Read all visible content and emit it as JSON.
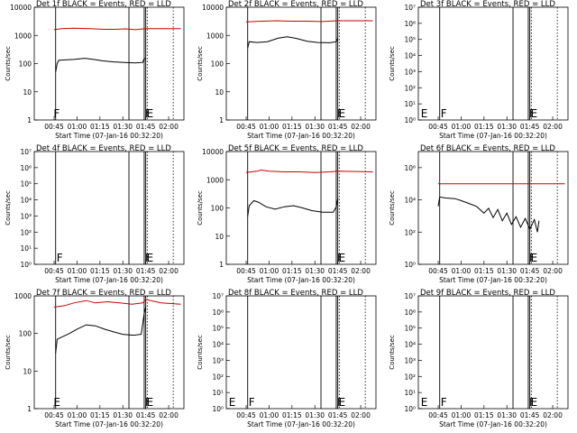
{
  "figure": {
    "xlabel": "Start Time (07-Jan-16 00:32:20)",
    "ylabel": "Counts/sec"
  },
  "chart_data": [
    {
      "type": "line",
      "title": "Det 1f BLACK = Events, RED = LLD",
      "scale": "log",
      "ylim": [
        1,
        10000
      ],
      "y_ticks": [
        "1",
        "10",
        "100",
        "1000",
        "10000"
      ],
      "x_ticks": [
        "00:45",
        "01:00",
        "01:15",
        "01:30",
        "01:45",
        "02:00"
      ],
      "flag_labels": [
        {
          "text": "F",
          "x": "00:44"
        },
        {
          "text": "F",
          "x": "01:44"
        },
        {
          "text": "E",
          "x": "01:45"
        }
      ],
      "series": [
        {
          "color": "#000000",
          "points": [
            [
              "00:46",
              50
            ],
            [
              "00:47",
              100
            ],
            [
              "00:48",
              130
            ],
            [
              "00:52",
              135
            ],
            [
              "00:58",
              140
            ],
            [
              "01:05",
              155
            ],
            [
              "01:11",
              140
            ],
            [
              "01:17",
              125
            ],
            [
              "01:24",
              115
            ],
            [
              "01:31",
              110
            ],
            [
              "01:38",
              105
            ],
            [
              "01:43",
              110
            ],
            [
              "01:44",
              150
            ],
            [
              "01:45",
              150
            ]
          ]
        },
        {
          "color": "#cc0000",
          "points": [
            [
              "00:45",
              1600
            ],
            [
              "00:50",
              1750
            ],
            [
              "00:58",
              1800
            ],
            [
              "01:08",
              1750
            ],
            [
              "01:18",
              1650
            ],
            [
              "01:25",
              1650
            ],
            [
              "01:32",
              1700
            ],
            [
              "01:38",
              1600
            ],
            [
              "01:45",
              1750
            ],
            [
              "02:08",
              1750
            ]
          ]
        }
      ]
    },
    {
      "type": "line",
      "title": "Det 2f BLACK = Events, RED = LLD",
      "scale": "log",
      "ylim": [
        1,
        10000
      ],
      "y_ticks": [
        "1",
        "10",
        "100",
        "1000",
        "10000"
      ],
      "x_ticks": [
        "00:45",
        "01:00",
        "01:15",
        "01:30",
        "01:45",
        "02:00"
      ],
      "flag_labels": [
        {
          "text": "F",
          "x": "01:44"
        },
        {
          "text": "E",
          "x": "01:45"
        }
      ],
      "series": [
        {
          "color": "#000000",
          "points": [
            [
              "00:46",
              350
            ],
            [
              "00:47",
              600
            ],
            [
              "00:52",
              560
            ],
            [
              "00:59",
              600
            ],
            [
              "01:06",
              800
            ],
            [
              "01:12",
              900
            ],
            [
              "01:18",
              780
            ],
            [
              "01:25",
              620
            ],
            [
              "01:32",
              560
            ],
            [
              "01:40",
              550
            ],
            [
              "01:44",
              600
            ],
            [
              "01:45",
              800
            ]
          ]
        },
        {
          "color": "#cc0000",
          "points": [
            [
              "00:45",
              3000
            ],
            [
              "00:55",
              3200
            ],
            [
              "01:05",
              3300
            ],
            [
              "01:15",
              3200
            ],
            [
              "01:25",
              3200
            ],
            [
              "01:35",
              3100
            ],
            [
              "01:45",
              3300
            ],
            [
              "02:08",
              3300
            ]
          ]
        }
      ]
    },
    {
      "type": "line",
      "title": "Det 3f BLACK = Events, RED = LLD",
      "scale": "log_exp",
      "ylim": [
        1,
        10000000
      ],
      "y_ticks": [
        "10⁰",
        "10¹",
        "10²",
        "10³",
        "10⁴",
        "10⁵",
        "10⁶",
        "10⁷"
      ],
      "x_ticks": [
        "00:45",
        "01:00",
        "01:15",
        "01:30",
        "01:45",
        "02:00"
      ],
      "flag_labels": [
        {
          "text": "E",
          "x": "00:33"
        },
        {
          "text": "F",
          "x": "00:46"
        },
        {
          "text": "F",
          "x": "01:44"
        },
        {
          "text": "E",
          "x": "01:45"
        }
      ],
      "series": []
    },
    {
      "type": "line",
      "title": "Det 4f BLACK = Events, RED = LLD",
      "scale": "log_exp",
      "ylim": [
        1,
        10000000
      ],
      "y_ticks": [
        "10⁰",
        "10¹",
        "10²",
        "10³",
        "10⁴",
        "10⁵",
        "10⁶",
        "10⁷"
      ],
      "x_ticks": [
        "00:45",
        "01:00",
        "01:15",
        "01:30",
        "01:45",
        "02:00"
      ],
      "flag_labels": [
        {
          "text": "F",
          "x": "00:46"
        },
        {
          "text": "F",
          "x": "01:44"
        },
        {
          "text": "E",
          "x": "01:45"
        }
      ],
      "series": []
    },
    {
      "type": "line",
      "title": "Det 5f BLACK = Events, RED = LLD",
      "scale": "log",
      "ylim": [
        1,
        10000
      ],
      "y_ticks": [
        "1",
        "10",
        "100",
        "1000",
        "10000"
      ],
      "x_ticks": [
        "00:45",
        "01:00",
        "01:15",
        "01:30",
        "01:45",
        "02:00"
      ],
      "flag_labels": [
        {
          "text": "F",
          "x": "01:44"
        },
        {
          "text": "E",
          "x": "01:45"
        }
      ],
      "series": [
        {
          "color": "#000000",
          "points": [
            [
              "00:46",
              50
            ],
            [
              "00:47",
              120
            ],
            [
              "00:50",
              180
            ],
            [
              "00:53",
              160
            ],
            [
              "00:58",
              110
            ],
            [
              "01:04",
              90
            ],
            [
              "01:10",
              110
            ],
            [
              "01:16",
              120
            ],
            [
              "01:22",
              100
            ],
            [
              "01:28",
              80
            ],
            [
              "01:35",
              70
            ],
            [
              "01:42",
              70
            ],
            [
              "01:44",
              110
            ],
            [
              "01:45",
              220
            ]
          ]
        },
        {
          "color": "#cc0000",
          "points": [
            [
              "00:45",
              1800
            ],
            [
              "00:52",
              2000
            ],
            [
              "00:55",
              2200
            ],
            [
              "01:00",
              2000
            ],
            [
              "01:10",
              1900
            ],
            [
              "01:20",
              1900
            ],
            [
              "01:30",
              1800
            ],
            [
              "01:40",
              1900
            ],
            [
              "01:45",
              2000
            ],
            [
              "02:08",
              1900
            ]
          ]
        }
      ]
    },
    {
      "type": "line",
      "title": "Det 6f BLACK = Events, RED = LLD",
      "scale": "log_exp",
      "ylim": [
        1,
        10000000
      ],
      "y_ticks": [
        "10⁰",
        "10²",
        "10⁴",
        "10⁶"
      ],
      "x_ticks": [
        "00:45",
        "01:00",
        "01:15",
        "01:30",
        "01:45",
        "02:00"
      ],
      "flag_labels": [
        {
          "text": "F",
          "x": "01:44"
        },
        {
          "text": "E",
          "x": "01:45"
        }
      ],
      "series": [
        {
          "color": "#000000",
          "points": [
            [
              "00:45",
              4000
            ],
            [
              "00:46",
              15000
            ],
            [
              "00:50",
              13000
            ],
            [
              "00:56",
              12000
            ],
            [
              "01:00",
              9000
            ],
            [
              "01:05",
              6000
            ],
            [
              "01:10",
              4000
            ],
            [
              "01:15",
              1500
            ],
            [
              "01:18",
              3000
            ],
            [
              "01:21",
              800
            ],
            [
              "01:24",
              2500
            ],
            [
              "01:27",
              500
            ],
            [
              "01:30",
              1500
            ],
            [
              "01:33",
              300
            ],
            [
              "01:36",
              900
            ],
            [
              "01:39",
              200
            ],
            [
              "01:42",
              700
            ],
            [
              "01:45",
              150
            ],
            [
              "01:48",
              600
            ],
            [
              "01:50",
              100
            ],
            [
              "01:51",
              500
            ]
          ]
        },
        {
          "color": "#cc0000",
          "points": [
            [
              "00:45",
              100000
            ],
            [
              "01:00",
              100000
            ],
            [
              "01:15",
              100000
            ],
            [
              "01:30",
              100000
            ],
            [
              "01:45",
              100000
            ],
            [
              "02:08",
              100000
            ]
          ]
        }
      ]
    },
    {
      "type": "line",
      "title": "Det 7f BLACK = Events, RED = LLD",
      "scale": "log",
      "ylim": [
        1,
        1000
      ],
      "y_ticks": [
        "1",
        "10",
        "100",
        "1000"
      ],
      "x_ticks": [
        "00:45",
        "01:00",
        "01:15",
        "01:30",
        "01:45",
        "02:00"
      ],
      "flag_labels": [
        {
          "text": "E",
          "x": "00:44"
        },
        {
          "text": "F",
          "x": "01:44"
        },
        {
          "text": "E",
          "x": "01:45"
        }
      ],
      "series": [
        {
          "color": "#000000",
          "points": [
            [
              "00:46",
              30
            ],
            [
              "00:47",
              70
            ],
            [
              "00:50",
              80
            ],
            [
              "00:55",
              100
            ],
            [
              "01:00",
              130
            ],
            [
              "01:06",
              170
            ],
            [
              "01:12",
              160
            ],
            [
              "01:18",
              130
            ],
            [
              "01:24",
              110
            ],
            [
              "01:30",
              95
            ],
            [
              "01:37",
              90
            ],
            [
              "01:42",
              95
            ],
            [
              "01:44",
              350
            ],
            [
              "01:45",
              500
            ]
          ]
        },
        {
          "color": "#cc0000",
          "points": [
            [
              "00:45",
              500
            ],
            [
              "00:52",
              550
            ],
            [
              "00:58",
              650
            ],
            [
              "01:06",
              750
            ],
            [
              "01:12",
              650
            ],
            [
              "01:20",
              700
            ],
            [
              "01:28",
              650
            ],
            [
              "01:36",
              600
            ],
            [
              "01:43",
              650
            ],
            [
              "01:45",
              800
            ],
            [
              "01:55",
              650
            ],
            [
              "02:08",
              600
            ]
          ]
        }
      ]
    },
    {
      "type": "line",
      "title": "Det 8f BLACK = Events, RED = LLD",
      "scale": "log_exp",
      "ylim": [
        1,
        10000000
      ],
      "y_ticks": [
        "10⁰",
        "10¹",
        "10²",
        "10³",
        "10⁴",
        "10⁵",
        "10⁶",
        "10⁷"
      ],
      "x_ticks": [
        "00:45",
        "01:00",
        "01:15",
        "01:30",
        "01:45",
        "02:00"
      ],
      "flag_labels": [
        {
          "text": "E",
          "x": "00:33"
        },
        {
          "text": "F",
          "x": "00:46"
        },
        {
          "text": "F",
          "x": "01:44"
        },
        {
          "text": "E",
          "x": "01:45"
        }
      ],
      "series": []
    },
    {
      "type": "line",
      "title": "Det 9f BLACK = Events, RED = LLD",
      "scale": "log_exp",
      "ylim": [
        1,
        10000000
      ],
      "y_ticks": [
        "10⁰",
        "10¹",
        "10²",
        "10³",
        "10⁴",
        "10⁵",
        "10⁶",
        "10⁷"
      ],
      "x_ticks": [
        "00:45",
        "01:00",
        "01:15",
        "01:30",
        "01:45",
        "02:00"
      ],
      "flag_labels": [
        {
          "text": "E",
          "x": "00:33"
        },
        {
          "text": "F",
          "x": "00:46"
        },
        {
          "text": "F",
          "x": "01:44"
        },
        {
          "text": "E",
          "x": "01:45"
        }
      ],
      "series": []
    }
  ],
  "markers": {
    "solid_times": [
      "00:46",
      "01:34",
      "01:44",
      "01:45"
    ],
    "dotted_times": [
      "01:46",
      "02:03"
    ]
  }
}
